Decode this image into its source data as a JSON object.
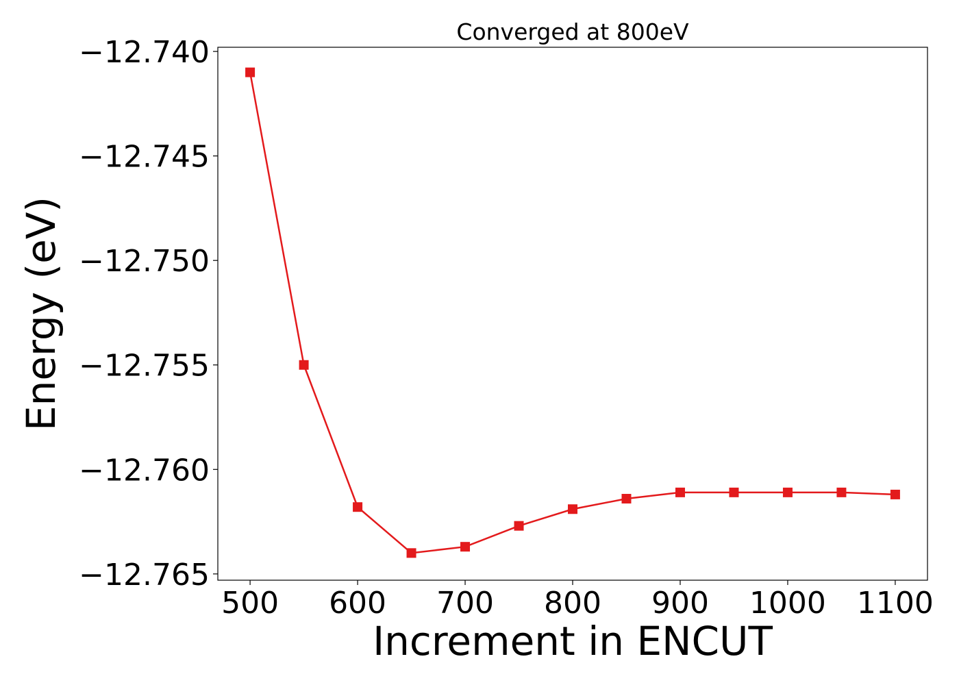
{
  "chart_data": {
    "type": "line",
    "title": "Converged at 800eV",
    "xlabel": "Increment in ENCUT",
    "ylabel": "Energy (eV)",
    "x": [
      500,
      550,
      600,
      650,
      700,
      750,
      800,
      850,
      900,
      950,
      1000,
      1050,
      1100
    ],
    "series": [
      {
        "values": [
          -12.741,
          -12.755,
          -12.7618,
          -12.764,
          -12.7637,
          -12.7627,
          -12.7619,
          -12.7614,
          -12.7611,
          -12.7611,
          -12.7611,
          -12.7611,
          -12.7612
        ],
        "color": "#e31a1c",
        "marker": "square"
      }
    ],
    "xlim": [
      470,
      1130
    ],
    "ylim": [
      -12.7653,
      -12.7398
    ],
    "xticks": [
      500,
      600,
      700,
      800,
      900,
      1000,
      1100
    ],
    "xtick_labels": [
      "500",
      "600",
      "700",
      "800",
      "900",
      "1000",
      "1100"
    ],
    "yticks": [
      -12.74,
      -12.745,
      -12.75,
      -12.755,
      -12.76,
      -12.765
    ],
    "ytick_labels": [
      "−12.740",
      "−12.745",
      "−12.750",
      "−12.755",
      "−12.760",
      "−12.765"
    ],
    "grid": false
  }
}
